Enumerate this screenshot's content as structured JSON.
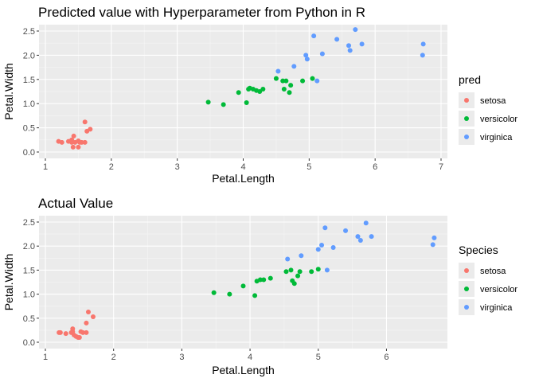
{
  "colors": {
    "setosa": "#F8766D",
    "versicolor": "#00BA38",
    "virginica": "#619CFF",
    "panel_bg": "#EBEBEB",
    "grid_major": "#FFFFFF",
    "text": "#000000",
    "axis_text": "#4D4D4D"
  },
  "chart_data": [
    {
      "type": "scatter",
      "title": "Predicted value with Hyperparameter from Python in R",
      "xlabel": "Petal.Length",
      "ylabel": "Petal.Width",
      "xlim": [
        1,
        7
      ],
      "ylim": [
        0,
        2.5
      ],
      "xticks": [
        "1",
        "2",
        "3",
        "4",
        "5",
        "6",
        "7"
      ],
      "yticks": [
        "0.0",
        "0.5",
        "1.0",
        "1.5",
        "2.0",
        "2.5"
      ],
      "grid": true,
      "legend": {
        "title": "pred",
        "position": "right"
      },
      "series": [
        {
          "name": "setosa",
          "x": [
            1.2,
            1.25,
            1.35,
            1.4,
            1.4,
            1.43,
            1.45,
            1.5,
            1.52,
            1.55,
            1.6,
            1.6,
            1.63,
            1.68,
            1.42,
            1.5
          ],
          "y": [
            0.22,
            0.2,
            0.22,
            0.2,
            0.25,
            0.33,
            0.2,
            0.23,
            0.2,
            0.2,
            0.2,
            0.62,
            0.43,
            0.47,
            0.1,
            0.1
          ]
        },
        {
          "name": "versicolor",
          "x": [
            3.47,
            3.7,
            3.93,
            4.05,
            4.08,
            4.1,
            4.15,
            4.2,
            4.25,
            4.3,
            4.5,
            4.6,
            4.62,
            4.65,
            4.7,
            4.72,
            4.9,
            5.05
          ],
          "y": [
            1.03,
            0.98,
            1.23,
            1.02,
            1.3,
            1.32,
            1.3,
            1.27,
            1.25,
            1.3,
            1.52,
            1.47,
            1.3,
            1.47,
            1.23,
            1.38,
            1.47,
            1.52
          ]
        },
        {
          "name": "virginica",
          "x": [
            4.53,
            4.77,
            4.95,
            4.97,
            5.07,
            5.12,
            5.2,
            5.42,
            5.6,
            5.62,
            5.7,
            5.8,
            6.72,
            6.73
          ],
          "y": [
            1.67,
            1.77,
            2.0,
            1.92,
            2.4,
            1.47,
            2.03,
            2.33,
            2.2,
            2.1,
            2.53,
            2.23,
            2.0,
            2.23
          ]
        }
      ]
    },
    {
      "type": "scatter",
      "title": "Actual Value",
      "xlabel": "Petal.Length",
      "ylabel": "Petal.Width",
      "xlim": [
        1,
        6.8
      ],
      "ylim": [
        0,
        2.5
      ],
      "xticks": [
        "1",
        "2",
        "3",
        "4",
        "5",
        "6"
      ],
      "yticks": [
        "0.0",
        "0.5",
        "1.0",
        "1.5",
        "2.0",
        "2.5"
      ],
      "grid": true,
      "legend": {
        "title": "Species",
        "position": "right"
      },
      "series": [
        {
          "name": "setosa",
          "x": [
            1.2,
            1.22,
            1.3,
            1.38,
            1.4,
            1.4,
            1.42,
            1.45,
            1.48,
            1.5,
            1.52,
            1.55,
            1.6,
            1.6,
            1.63,
            1.7
          ],
          "y": [
            0.2,
            0.2,
            0.18,
            0.2,
            0.28,
            0.22,
            0.15,
            0.12,
            0.1,
            0.1,
            0.22,
            0.2,
            0.2,
            0.4,
            0.63,
            0.53
          ]
        },
        {
          "name": "versicolor",
          "x": [
            3.47,
            3.7,
            3.9,
            4.07,
            4.1,
            4.15,
            4.2,
            4.3,
            4.53,
            4.6,
            4.62,
            4.65,
            4.7,
            4.73,
            4.9,
            5.0
          ],
          "y": [
            1.03,
            1.0,
            1.17,
            0.97,
            1.27,
            1.3,
            1.3,
            1.33,
            1.47,
            1.5,
            1.28,
            1.22,
            1.38,
            1.47,
            1.47,
            1.52
          ]
        },
        {
          "name": "virginica",
          "x": [
            4.55,
            4.75,
            5.0,
            5.05,
            5.1,
            5.13,
            5.22,
            5.4,
            5.58,
            5.62,
            5.7,
            5.78,
            6.68,
            6.7
          ],
          "y": [
            1.73,
            1.8,
            1.93,
            2.02,
            2.38,
            1.5,
            1.97,
            2.32,
            2.2,
            2.12,
            2.48,
            2.2,
            2.03,
            2.17
          ]
        }
      ]
    }
  ]
}
